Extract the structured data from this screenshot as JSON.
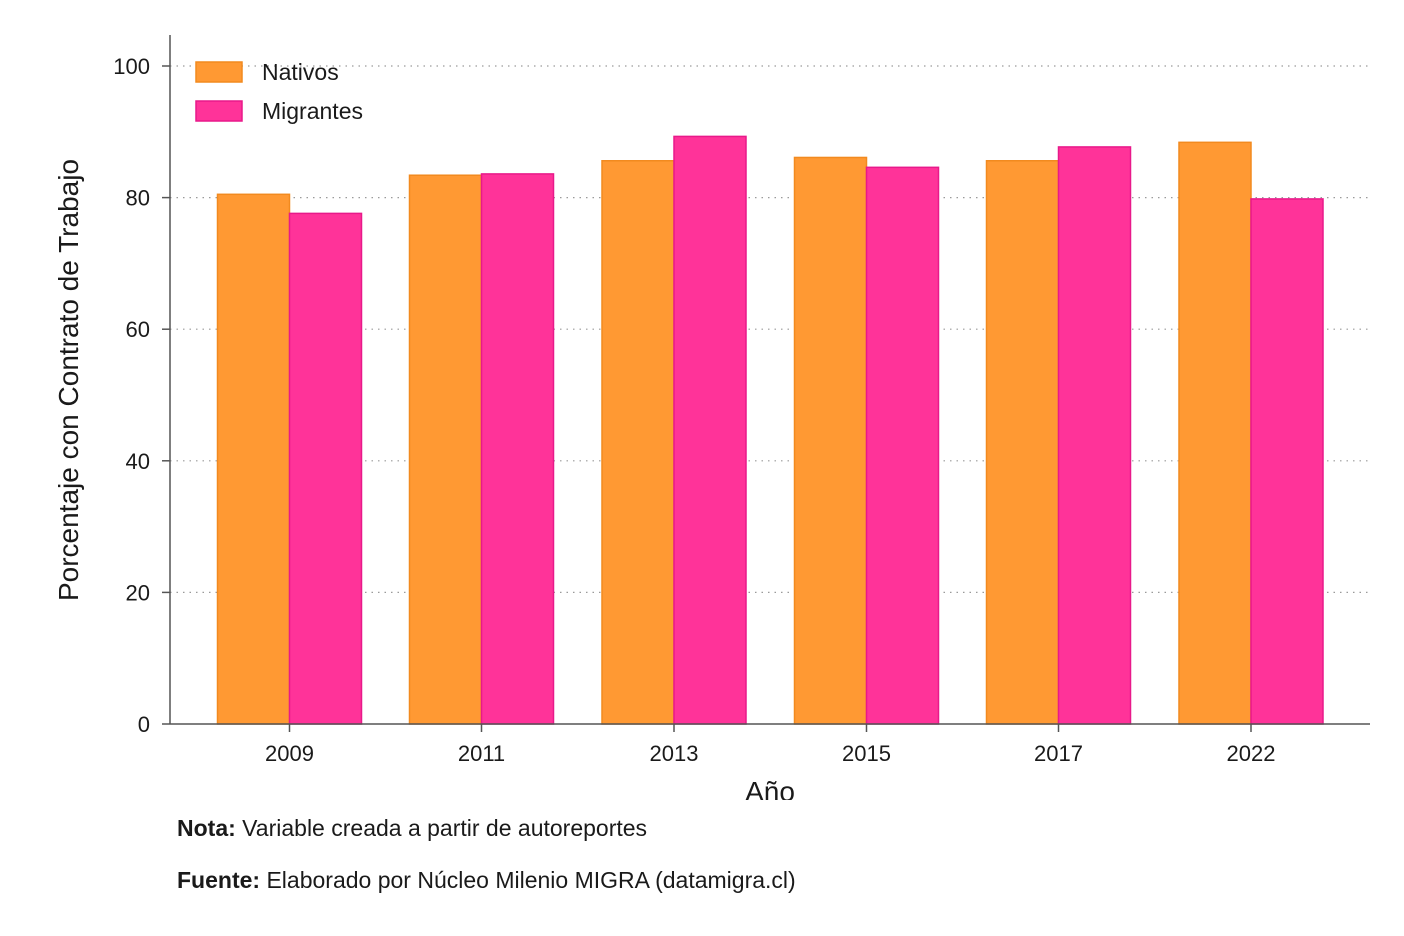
{
  "chart_data": {
    "type": "bar",
    "categories": [
      "2009",
      "2011",
      "2013",
      "2015",
      "2017",
      "2022"
    ],
    "series": [
      {
        "name": "Nativos",
        "values": [
          80.5,
          83.4,
          85.6,
          86.1,
          85.6,
          88.4
        ],
        "color": "#ff9933",
        "stroke": "#f28a1f"
      },
      {
        "name": "Migrantes",
        "values": [
          77.6,
          83.6,
          89.3,
          84.6,
          87.7,
          79.8
        ],
        "color": "#ff3399",
        "stroke": "#e8198a"
      }
    ],
    "xlabel": "Año",
    "ylabel": "Porcentaje con Contrato de Trabajo",
    "ylim": [
      0,
      105
    ],
    "yticks": [
      "0",
      "20",
      "40",
      "60",
      "80",
      "100"
    ],
    "grid": true,
    "legend_position": "top-left"
  },
  "notes": {
    "nota_label": "Nota:",
    "nota_text": "Variable creada a partir de autoreportes",
    "fuente_label": "Fuente:",
    "fuente_text": "Elaborado por Núcleo Milenio MIGRA (datamigra.cl)"
  }
}
